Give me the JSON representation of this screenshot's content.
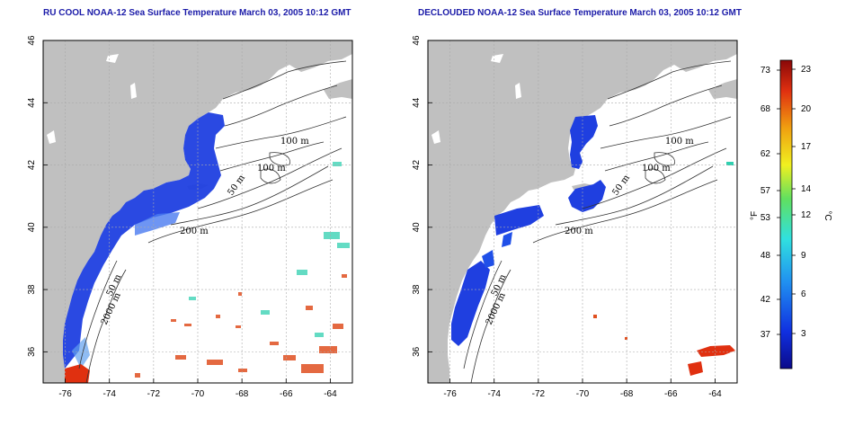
{
  "maps": [
    {
      "title": "RU COOL NOAA-12 Sea Surface Temperature March 03, 2005 10:12 GMT",
      "x_ticks": [
        "-76",
        "-74",
        "-72",
        "-70",
        "-68",
        "-66",
        "-64"
      ],
      "y_ticks": [
        "36",
        "38",
        "40",
        "42",
        "44",
        "46"
      ],
      "contour_labels": [
        "100 m",
        "100 m",
        "50 m",
        "200 m",
        "50 m",
        "2000 m"
      ]
    },
    {
      "title": "DECLOUDED NOAA-12 Sea Surface Temperature March 03, 2005 10:12 GMT",
      "x_ticks": [
        "-76",
        "-74",
        "-72",
        "-70",
        "-68",
        "-66",
        "-64"
      ],
      "y_ticks": [
        "36",
        "38",
        "40",
        "42",
        "44",
        "46"
      ],
      "contour_labels": [
        "100 m",
        "100 m",
        "50 m",
        "200 m",
        "50 m",
        "2000 m"
      ]
    }
  ],
  "colorbar": {
    "unit_f": "°F",
    "unit_c": "°C",
    "f_ticks": [
      "73",
      "68",
      "62",
      "57",
      "53",
      "48",
      "42",
      "37"
    ],
    "c_ticks": [
      "23",
      "20",
      "17",
      "14",
      "12",
      "9",
      "6",
      "3"
    ]
  },
  "colors": {
    "land": "#c0c0c0",
    "cold": "#1f3fe0",
    "warm": "#e03010",
    "title": "#1a1aa8"
  }
}
